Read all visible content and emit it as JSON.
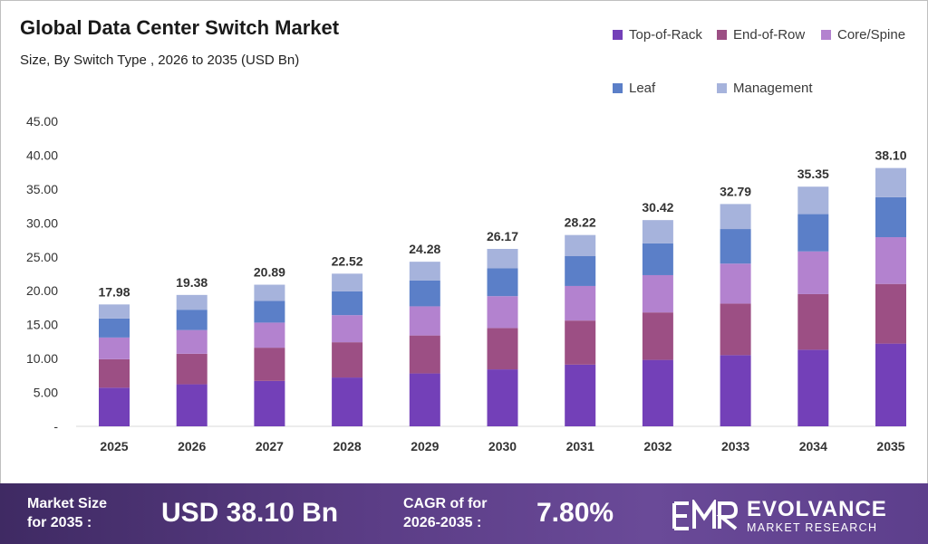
{
  "header": {
    "title": "Global Data Center Switch Market",
    "subtitle": "Size, By Switch Type , 2026 to 2035 (USD Bn)"
  },
  "chart_data": {
    "type": "bar",
    "stacked": true,
    "categories": [
      "2025",
      "2026",
      "2027",
      "2028",
      "2029",
      "2030",
      "2031",
      "2032",
      "2033",
      "2034",
      "2035"
    ],
    "series": [
      {
        "name": "Top-of-Rack",
        "color": "#7340b8",
        "values": [
          5.7,
          6.2,
          6.7,
          7.2,
          7.8,
          8.4,
          9.1,
          9.8,
          10.5,
          11.3,
          12.2
        ]
      },
      {
        "name": "End-of-Row",
        "color": "#9c4f84",
        "values": [
          4.2,
          4.5,
          4.9,
          5.2,
          5.6,
          6.1,
          6.5,
          7.0,
          7.6,
          8.2,
          8.8
        ]
      },
      {
        "name": "Core/Spine",
        "color": "#b382cf",
        "values": [
          3.2,
          3.5,
          3.7,
          4.0,
          4.3,
          4.7,
          5.1,
          5.5,
          5.9,
          6.3,
          6.9
        ]
      },
      {
        "name": "Leaf",
        "color": "#5b7fc8",
        "values": [
          2.8,
          3.0,
          3.2,
          3.5,
          3.8,
          4.1,
          4.4,
          4.7,
          5.1,
          5.5,
          5.9
        ]
      },
      {
        "name": "Management",
        "color": "#a6b3dc",
        "values": [
          2.08,
          2.18,
          2.39,
          2.62,
          2.78,
          2.87,
          3.12,
          3.42,
          3.69,
          4.05,
          4.3
        ]
      }
    ],
    "totals": [
      "17.98",
      "19.38",
      "20.89",
      "22.52",
      "24.28",
      "26.17",
      "28.22",
      "30.42",
      "32.79",
      "35.35",
      "38.10"
    ],
    "yticks": [
      "-",
      "5.00",
      "10.00",
      "15.00",
      "20.00",
      "25.00",
      "30.00",
      "35.00",
      "40.00",
      "45.00"
    ],
    "ylim": [
      0,
      45
    ],
    "grid": false,
    "legend_position": "top-right"
  },
  "footer": {
    "market_size_label": "Market Size for 2035 :",
    "market_size_value": "USD 38.10 Bn",
    "cagr_label": "CAGR of for 2026-2035 :",
    "cagr_value": "7.80%",
    "brand_name": "EVOLVANCE",
    "brand_tagline": "MARKET RESEARCH",
    "brand_icon": "emr-logo-icon"
  }
}
